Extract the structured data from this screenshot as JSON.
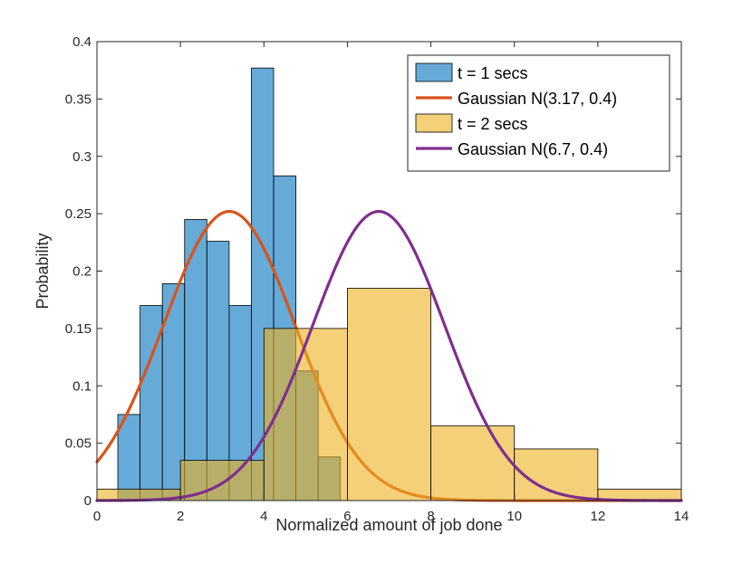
{
  "chart_data": {
    "type": "histogram",
    "xlabel": "Normalized amount of job done",
    "ylabel": "Probability",
    "xlim": [
      0,
      14
    ],
    "ylim": [
      0,
      0.4
    ],
    "xticks": [
      0,
      2,
      4,
      6,
      8,
      10,
      12,
      14
    ],
    "yticks": [
      0,
      0.05,
      0.1,
      0.15,
      0.2,
      0.25,
      0.3,
      0.35,
      0.4
    ],
    "xtick_labels": [
      "0",
      "2",
      "4",
      "6",
      "8",
      "10",
      "12",
      "14"
    ],
    "ytick_labels": [
      "0",
      "0.05",
      "0.1",
      "0.15",
      "0.2",
      "0.25",
      "0.3",
      "0.35",
      "0.4"
    ],
    "legend_position": "top-right",
    "series": [
      {
        "name": "t = 1 secs",
        "kind": "histogram",
        "color": "#0072BD",
        "fill_opacity": 0.6,
        "bins": [
          {
            "x0": 0.5,
            "x1": 1.033,
            "value": 0.075
          },
          {
            "x0": 1.033,
            "x1": 1.567,
            "value": 0.17
          },
          {
            "x0": 1.567,
            "x1": 2.1,
            "value": 0.189
          },
          {
            "x0": 2.1,
            "x1": 2.633,
            "value": 0.245
          },
          {
            "x0": 2.633,
            "x1": 3.167,
            "value": 0.226
          },
          {
            "x0": 3.167,
            "x1": 3.7,
            "value": 0.17
          },
          {
            "x0": 3.7,
            "x1": 4.233,
            "value": 0.377
          },
          {
            "x0": 4.233,
            "x1": 4.767,
            "value": 0.283
          },
          {
            "x0": 4.767,
            "x1": 5.3,
            "value": 0.113
          },
          {
            "x0": 5.3,
            "x1": 5.833,
            "value": 0.038
          }
        ]
      },
      {
        "name": "Gaussian N(3.17, 0.4)",
        "kind": "line",
        "color": "#D95319",
        "mean": 3.17,
        "std": 1.58,
        "peak": 0.252,
        "x_range": [
          0,
          14
        ]
      },
      {
        "name": "t = 2 secs",
        "kind": "histogram",
        "color": "#EDB120",
        "fill_opacity": 0.6,
        "bins": [
          {
            "x0": 0,
            "x1": 2,
            "value": 0.01
          },
          {
            "x0": 2,
            "x1": 4,
            "value": 0.035
          },
          {
            "x0": 4,
            "x1": 6,
            "value": 0.15
          },
          {
            "x0": 6,
            "x1": 8,
            "value": 0.185
          },
          {
            "x0": 8,
            "x1": 10,
            "value": 0.065
          },
          {
            "x0": 10,
            "x1": 12,
            "value": 0.045
          },
          {
            "x0": 12,
            "x1": 14,
            "value": 0.01
          }
        ]
      },
      {
        "name": "Gaussian N(6.7, 0.4)",
        "kind": "line",
        "color": "#7E2F8E",
        "mean": 6.75,
        "std": 1.58,
        "peak": 0.252,
        "x_range": [
          0,
          14
        ]
      }
    ]
  }
}
